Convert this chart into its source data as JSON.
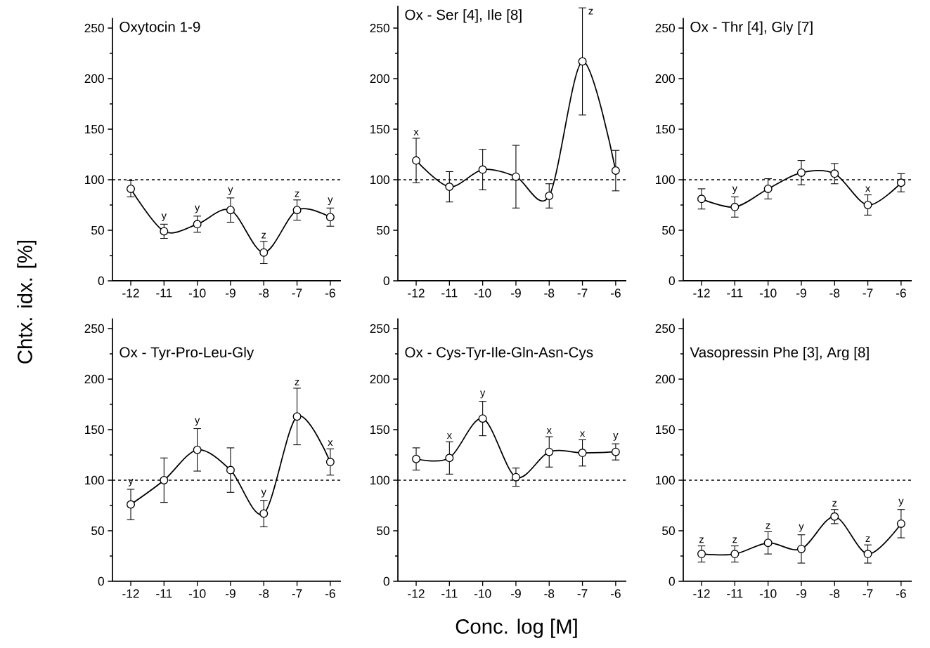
{
  "chart_data": [
    {
      "type": "line",
      "title": "Oxytocin 1-9",
      "ylabel": "Chtx. idx. [%]",
      "color": "#000000",
      "marker": "circle",
      "line_style": "solid",
      "x": [
        -12,
        -11,
        -10,
        -9,
        -8,
        -7,
        -6
      ],
      "values": [
        91,
        49,
        56,
        70,
        28,
        70,
        63
      ],
      "errors": [
        8,
        7,
        8,
        12,
        11,
        10,
        9
      ],
      "xlim": [
        -12.55,
        -5.68
      ],
      "ylim": [
        0,
        260
      ],
      "xticks": [
        -12,
        -11,
        -10,
        -9,
        -8,
        -7,
        -6
      ],
      "yticks": [
        0,
        50,
        100,
        150,
        200,
        250
      ],
      "ref_lines": [
        {
          "axis": "y",
          "value": 100,
          "line_style": "dashed"
        }
      ],
      "annotations": [
        {
          "text": "y",
          "x": -11,
          "y": 56
        },
        {
          "text": "y",
          "x": -10,
          "y": 64
        },
        {
          "text": "y",
          "x": -9,
          "y": 82
        },
        {
          "text": "z",
          "x": -8,
          "y": 39
        },
        {
          "text": "z",
          "x": -7,
          "y": 80
        },
        {
          "text": "y",
          "x": -6,
          "y": 72
        }
      ]
    },
    {
      "type": "line",
      "title": "Ox - Ser [4], Ile [8]",
      "color": "#000000",
      "marker": "circle",
      "line_style": "solid",
      "x": [
        -12,
        -11,
        -10,
        -9,
        -8,
        -7,
        -6
      ],
      "values": [
        119,
        93,
        110,
        103,
        84,
        217,
        109
      ],
      "errors": [
        22,
        15,
        20,
        31,
        12,
        53,
        20
      ],
      "xlim": [
        -12.55,
        -5.68
      ],
      "ylim": [
        0,
        272
      ],
      "xticks": [
        -12,
        -11,
        -10,
        -9,
        -8,
        -7,
        -6
      ],
      "yticks": [
        0,
        50,
        100,
        150,
        200,
        250
      ],
      "ref_lines": [
        {
          "axis": "y",
          "value": 100,
          "line_style": "dashed"
        }
      ],
      "annotations": [
        {
          "text": "x",
          "x": -12,
          "y": 141
        },
        {
          "text": "z",
          "x": -7,
          "y": 270
        }
      ]
    },
    {
      "type": "line",
      "title": "Ox - Thr [4], Gly [7]",
      "color": "#000000",
      "marker": "circle",
      "line_style": "solid",
      "x": [
        -12,
        -11,
        -10,
        -9,
        -8,
        -7,
        -6
      ],
      "values": [
        81,
        73,
        91,
        107,
        106,
        75,
        97
      ],
      "errors": [
        10,
        10,
        10,
        12,
        10,
        10,
        9
      ],
      "xlim": [
        -12.55,
        -5.68
      ],
      "ylim": [
        0,
        260
      ],
      "xticks": [
        -12,
        -11,
        -10,
        -9,
        -8,
        -7,
        -6
      ],
      "yticks": [
        0,
        50,
        100,
        150,
        200,
        250
      ],
      "ref_lines": [
        {
          "axis": "y",
          "value": 100,
          "line_style": "dashed"
        }
      ],
      "annotations": [
        {
          "text": "y",
          "x": -11,
          "y": 83
        },
        {
          "text": "x",
          "x": -7,
          "y": 85
        }
      ]
    },
    {
      "type": "line",
      "title": "Ox - Tyr-Pro-Leu-Gly",
      "color": "#000000",
      "marker": "circle",
      "line_style": "solid",
      "x": [
        -12,
        -11,
        -10,
        -9,
        -8,
        -7,
        -6
      ],
      "values": [
        76,
        100,
        130,
        110,
        67,
        163,
        118
      ],
      "errors": [
        15,
        22,
        21,
        22,
        13,
        28,
        13
      ],
      "xlim": [
        -12.55,
        -5.68
      ],
      "ylim": [
        0,
        260
      ],
      "xticks": [
        -12,
        -11,
        -10,
        -9,
        -8,
        -7,
        -6
      ],
      "yticks": [
        0,
        50,
        100,
        150,
        200,
        250
      ],
      "ref_lines": [
        {
          "axis": "y",
          "value": 100,
          "line_style": "dashed"
        }
      ],
      "annotations": [
        {
          "text": "y",
          "x": -12,
          "y": 91
        },
        {
          "text": "y",
          "x": -10,
          "y": 151
        },
        {
          "text": "y",
          "x": -8,
          "y": 80
        },
        {
          "text": "z",
          "x": -7,
          "y": 191
        },
        {
          "text": "x",
          "x": -6,
          "y": 131
        }
      ]
    },
    {
      "type": "line",
      "title": "Ox - Cys-Tyr-Ile-Gln-Asn-Cys",
      "xlabel": "Conc. log [M]",
      "color": "#000000",
      "marker": "circle",
      "line_style": "solid",
      "x": [
        -12,
        -11,
        -10,
        -9,
        -8,
        -7,
        -6
      ],
      "values": [
        121,
        122,
        161,
        103,
        128,
        127,
        128
      ],
      "errors": [
        11,
        16,
        17,
        9,
        15,
        13,
        8
      ],
      "xlim": [
        -12.55,
        -5.68
      ],
      "ylim": [
        0,
        260
      ],
      "xticks": [
        -12,
        -11,
        -10,
        -9,
        -8,
        -7,
        -6
      ],
      "yticks": [
        0,
        50,
        100,
        150,
        200,
        250
      ],
      "ref_lines": [
        {
          "axis": "y",
          "value": 100,
          "line_style": "dashed"
        }
      ],
      "annotations": [
        {
          "text": "x",
          "x": -11,
          "y": 138
        },
        {
          "text": "y",
          "x": -10,
          "y": 178
        },
        {
          "text": "x",
          "x": -8,
          "y": 143
        },
        {
          "text": "x",
          "x": -7,
          "y": 140
        },
        {
          "text": "y",
          "x": -6,
          "y": 136
        }
      ]
    },
    {
      "type": "line",
      "title": "Vasopressin Phe [3], Arg [8]",
      "color": "#000000",
      "marker": "circle",
      "line_style": "solid",
      "x": [
        -12,
        -11,
        -10,
        -9,
        -8,
        -7,
        -6
      ],
      "values": [
        27,
        27,
        38,
        32,
        64,
        27,
        57
      ],
      "errors": [
        8,
        8,
        11,
        14,
        7,
        9,
        14
      ],
      "xlim": [
        -12.55,
        -5.68
      ],
      "ylim": [
        0,
        260
      ],
      "xticks": [
        -12,
        -11,
        -10,
        -9,
        -8,
        -7,
        -6
      ],
      "yticks": [
        0,
        50,
        100,
        150,
        200,
        250
      ],
      "ref_lines": [
        {
          "axis": "y",
          "value": 100,
          "line_style": "dashed"
        }
      ],
      "annotations": [
        {
          "text": "z",
          "x": -12,
          "y": 35
        },
        {
          "text": "z",
          "x": -11,
          "y": 35
        },
        {
          "text": "z",
          "x": -10,
          "y": 49
        },
        {
          "text": "y",
          "x": -9,
          "y": 46
        },
        {
          "text": "z",
          "x": -8,
          "y": 71
        },
        {
          "text": "z",
          "x": -7,
          "y": 36
        },
        {
          "text": "y",
          "x": -6,
          "y": 71
        }
      ]
    }
  ]
}
